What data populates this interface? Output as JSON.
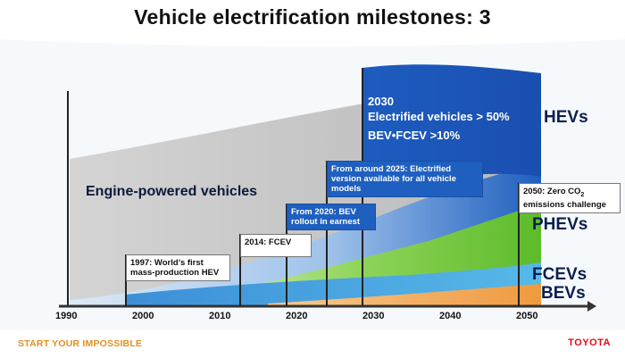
{
  "title": "Vehicle electrification milestones: 3",
  "areas": {
    "engine_label": "Engine-powered vehicles",
    "hevs": "HEVs",
    "phevs": "PHEVs",
    "fcevs": "FCEVs",
    "bevs": "BEVs"
  },
  "big_box": {
    "year": "2030",
    "line1": "Electrified vehicles > 50%",
    "line2": "BEV•FCEV >10%"
  },
  "milestones": [
    {
      "id": "m1997",
      "text": "1997: World’s first mass-production HEV"
    },
    {
      "id": "m2014",
      "text": "2014: FCEV"
    },
    {
      "id": "m2020",
      "text": "From 2020: BEV rollout in earnest"
    },
    {
      "id": "m2025",
      "text": "From around 2025: Electrified version available for all vehicle models"
    },
    {
      "id": "m2050_a",
      "text": "2050: Zero CO"
    },
    {
      "id": "m2050_sub",
      "text": "2"
    },
    {
      "id": "m2050_b",
      "text": "emissions challenge"
    }
  ],
  "axis": {
    "ticks": [
      "1990",
      "2000",
      "2010",
      "2020",
      "2030",
      "2040",
      "2050"
    ]
  },
  "colors": {
    "engine": "#c9c9c9",
    "hev": "#1f5fbf",
    "phev": "#7ccd3c",
    "fcev": "#52b3e6",
    "bev": "#f0a34a"
  },
  "footer": {
    "left": "START YOUR IMPOSSIBLE",
    "right": "TOYOTA"
  }
}
